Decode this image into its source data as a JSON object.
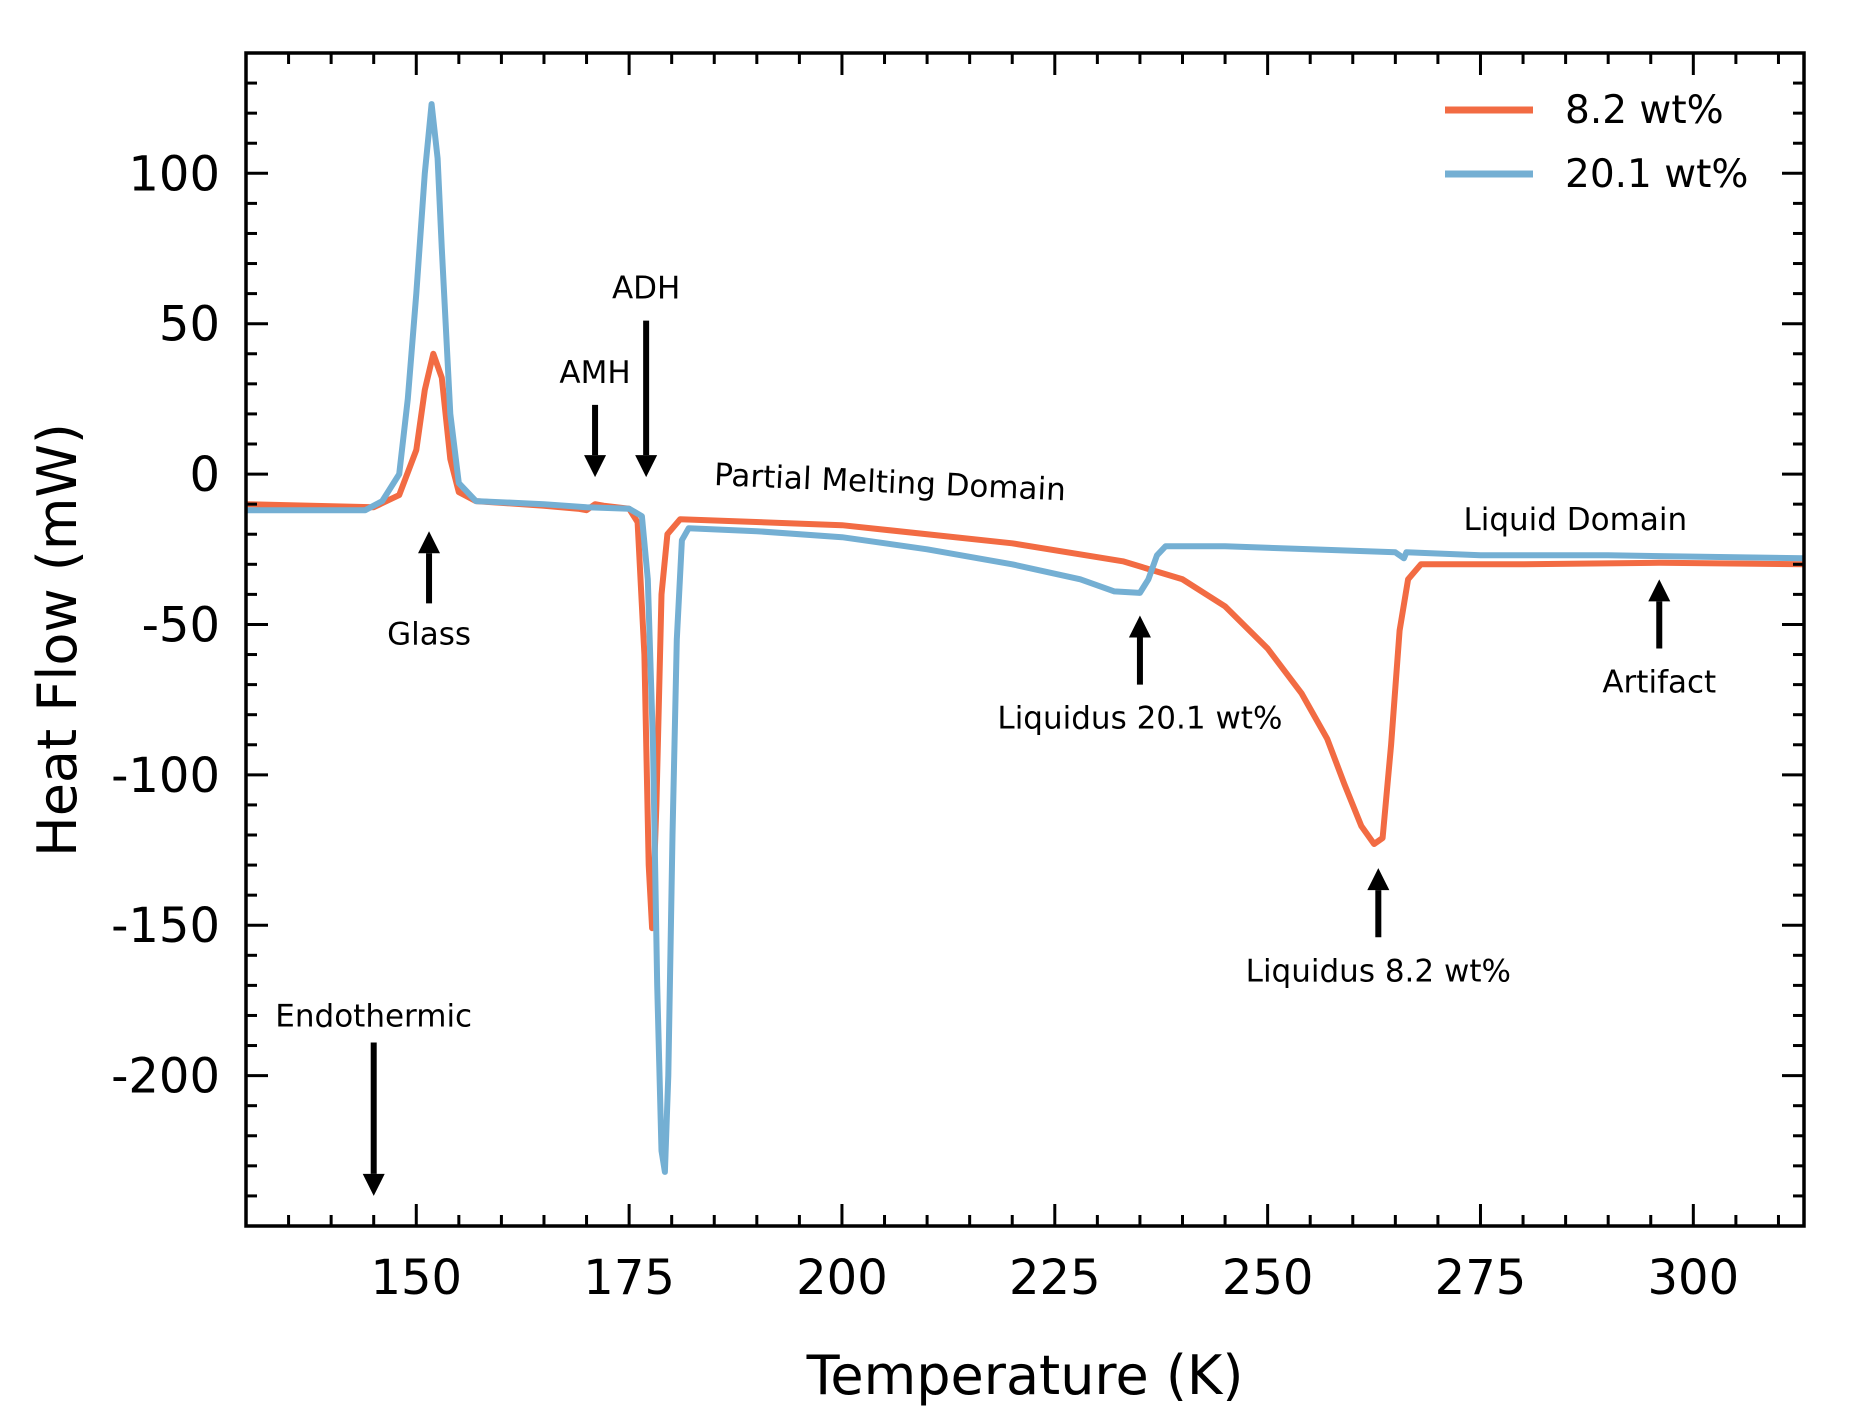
{
  "chart_data": {
    "type": "line",
    "xlabel": "Temperature (K)",
    "ylabel": "Heat Flow (mW)",
    "xlim": [
      130,
      313
    ],
    "ylim": [
      -250,
      140
    ],
    "xticks": [
      150,
      175,
      200,
      225,
      250,
      275,
      300
    ],
    "xtick_labels": [
      "150",
      "175",
      "200",
      "225",
      "250",
      "275",
      "300"
    ],
    "yticks": [
      100,
      50,
      0,
      -50,
      -100,
      -150,
      -200
    ],
    "ytick_labels": [
      "100",
      "50",
      "0",
      "-50",
      "-100",
      "-150",
      "-200"
    ],
    "grid": false,
    "legend_position": "top-right",
    "series": [
      {
        "name": "8.2 wt%",
        "color": "#f26b43",
        "points": [
          [
            130,
            -10
          ],
          [
            145,
            -11
          ],
          [
            148,
            -7
          ],
          [
            150,
            8
          ],
          [
            151,
            28
          ],
          [
            152,
            40
          ],
          [
            153,
            32
          ],
          [
            154,
            5
          ],
          [
            155,
            -6
          ],
          [
            157,
            -9
          ],
          [
            165,
            -10.5
          ],
          [
            169,
            -11.5
          ],
          [
            170,
            -12
          ],
          [
            171,
            -10
          ],
          [
            172,
            -10.5
          ],
          [
            175,
            -11.5
          ],
          [
            176,
            -16
          ],
          [
            176.8,
            -60
          ],
          [
            177.3,
            -130
          ],
          [
            177.7,
            -151
          ],
          [
            178.2,
            -110
          ],
          [
            178.8,
            -40
          ],
          [
            179.5,
            -20
          ],
          [
            181,
            -15
          ],
          [
            200,
            -17
          ],
          [
            220,
            -23
          ],
          [
            233,
            -29
          ],
          [
            240,
            -35
          ],
          [
            245,
            -44
          ],
          [
            250,
            -58
          ],
          [
            254,
            -73
          ],
          [
            257,
            -88
          ],
          [
            259,
            -103
          ],
          [
            261,
            -117
          ],
          [
            262.5,
            -123
          ],
          [
            263.5,
            -121
          ],
          [
            264.5,
            -90
          ],
          [
            265.5,
            -52
          ],
          [
            266.5,
            -35
          ],
          [
            268,
            -30
          ],
          [
            280,
            -30
          ],
          [
            296,
            -29.5
          ],
          [
            313,
            -30
          ]
        ]
      },
      {
        "name": "20.1 wt%",
        "color": "#74afd3",
        "points": [
          [
            130,
            -12
          ],
          [
            144,
            -12
          ],
          [
            146,
            -9
          ],
          [
            148,
            0
          ],
          [
            149,
            25
          ],
          [
            150,
            60
          ],
          [
            151,
            100
          ],
          [
            151.8,
            123
          ],
          [
            152.5,
            105
          ],
          [
            153,
            75
          ],
          [
            154,
            20
          ],
          [
            155,
            -3
          ],
          [
            157,
            -9
          ],
          [
            165,
            -10
          ],
          [
            170,
            -11
          ],
          [
            175,
            -11.5
          ],
          [
            176.5,
            -14
          ],
          [
            177.2,
            -35
          ],
          [
            177.8,
            -90
          ],
          [
            178.3,
            -170
          ],
          [
            178.8,
            -225
          ],
          [
            179.2,
            -232
          ],
          [
            179.6,
            -200
          ],
          [
            180.1,
            -120
          ],
          [
            180.6,
            -55
          ],
          [
            181.2,
            -22
          ],
          [
            182,
            -18
          ],
          [
            190,
            -19
          ],
          [
            200,
            -21
          ],
          [
            210,
            -25
          ],
          [
            220,
            -30
          ],
          [
            228,
            -35
          ],
          [
            232,
            -39
          ],
          [
            235,
            -39.5
          ],
          [
            236,
            -35
          ],
          [
            237,
            -27
          ],
          [
            238,
            -24
          ],
          [
            245,
            -24
          ],
          [
            255,
            -25
          ],
          [
            265,
            -26
          ],
          [
            266,
            -28
          ],
          [
            266.3,
            -26
          ],
          [
            275,
            -27
          ],
          [
            290,
            -27
          ],
          [
            313,
            -28
          ]
        ]
      }
    ],
    "annotations": [
      {
        "text": "Glass",
        "x": 151.5,
        "y": -53,
        "arrow_from": [
          151.5,
          -43
        ],
        "arrow_to": [
          151.5,
          -19
        ]
      },
      {
        "text": "AMH",
        "x": 171,
        "y": 34,
        "arrow_from": [
          171,
          23
        ],
        "arrow_to": [
          171,
          -1
        ]
      },
      {
        "text": "ADH",
        "x": 177,
        "y": 62,
        "arrow_from": [
          177,
          51
        ],
        "arrow_to": [
          177,
          -1
        ]
      },
      {
        "text": "Partial Melting Domain",
        "x": 185,
        "y": 0,
        "rotate": 2.5
      },
      {
        "text": "Liquidus 20.1 wt%",
        "x": 235,
        "y": -81,
        "arrow_from": [
          235,
          -70
        ],
        "arrow_to": [
          235,
          -47
        ]
      },
      {
        "text": "Liquid Domain",
        "x": 273,
        "y": -15
      },
      {
        "text": "Liquidus 8.2 wt%",
        "x": 263,
        "y": -165,
        "arrow_from": [
          263,
          -154
        ],
        "arrow_to": [
          263,
          -131
        ]
      },
      {
        "text": "Artifact",
        "x": 296,
        "y": -69,
        "arrow_from": [
          296,
          -58
        ],
        "arrow_to": [
          296,
          -35
        ]
      },
      {
        "text": "Endothermic",
        "x": 145,
        "y": -180,
        "arrow_from": [
          145,
          -189
        ],
        "arrow_to": [
          145,
          -240
        ]
      }
    ]
  }
}
